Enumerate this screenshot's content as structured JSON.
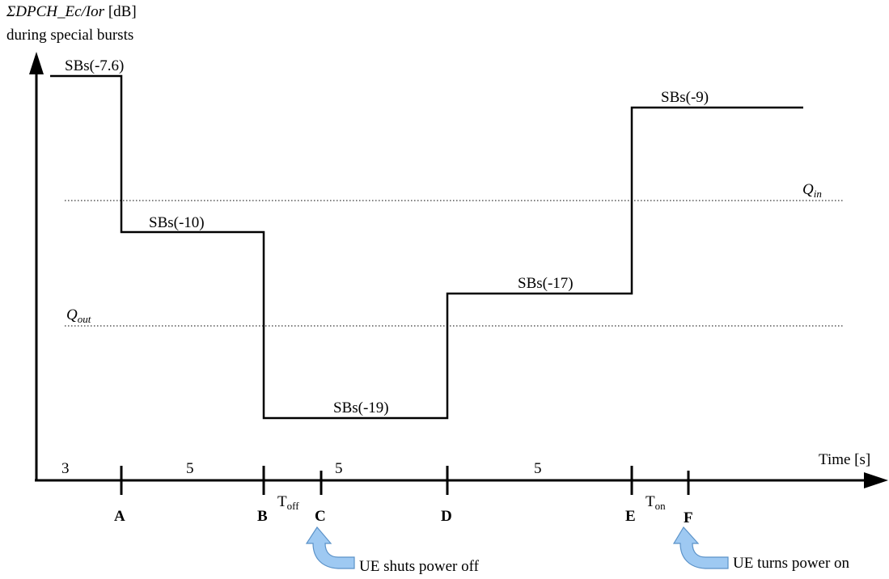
{
  "yaxis": {
    "title_italic": "ΣDPCH_Ec/Ior",
    "title_unit": " [dB]",
    "title_line2": "during special bursts"
  },
  "xaxis": {
    "label": "Time [s]"
  },
  "levels": [
    {
      "label": "SBs(-7.6)",
      "value_db": -7.6
    },
    {
      "label": "SBs(-10)",
      "value_db": -10
    },
    {
      "label": "SBs(-19)",
      "value_db": -19
    },
    {
      "label": "SBs(-17)",
      "value_db": -17
    },
    {
      "label": "SBs(-9)",
      "value_db": -9
    }
  ],
  "thresholds": {
    "qin": {
      "main": "Q",
      "sub": "in"
    },
    "qout": {
      "main": "Q",
      "sub": "out"
    }
  },
  "durations": [
    "3",
    "5",
    "5",
    "5"
  ],
  "points": [
    "A",
    "B",
    "C",
    "D",
    "E",
    "F"
  ],
  "intervals": {
    "toff": {
      "main": "T",
      "sub": "off"
    },
    "ton": {
      "main": "T",
      "sub": "on"
    }
  },
  "annotations": {
    "power_off": "UE shuts power off",
    "power_on": "UE turns power on"
  },
  "colors": {
    "ue_arrow_fill": "#9ec9f2",
    "ue_arrow_stroke": "#5b92c8"
  }
}
